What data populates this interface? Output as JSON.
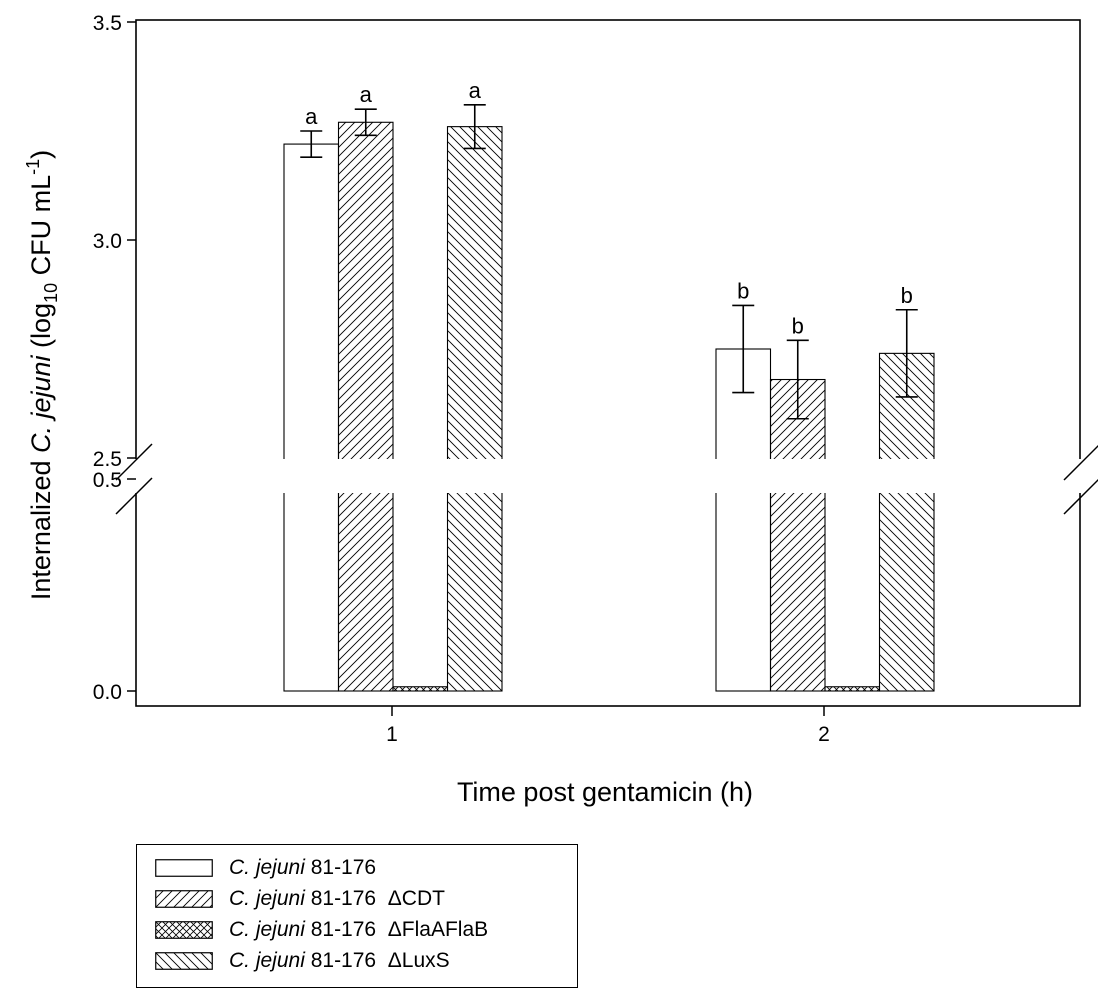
{
  "chart_data": {
    "type": "bar",
    "xlabel": "Time post gentamicin (h)",
    "ylabel": {
      "prefix": "Internalized ",
      "italic": "C. jejuni",
      "middle": " (log",
      "subscript": "10",
      "unit": " CFU mL",
      "superscript": "-1",
      "suffix": ")"
    },
    "categories": [
      "1",
      "2"
    ],
    "axis_break": {
      "lower_max": 0.5,
      "upper_min": 2.5
    },
    "ylim": [
      0.0,
      3.5
    ],
    "yticks": [
      {
        "value": 0.0,
        "label": "0.0"
      },
      {
        "value": 0.5,
        "label": "0.5"
      },
      {
        "value": 2.5,
        "label": "2.5"
      },
      {
        "value": 3.0,
        "label": "3.0"
      },
      {
        "value": 3.5,
        "label": "3.5"
      }
    ],
    "series": [
      {
        "name": "C. jejuni 81-176",
        "pattern": "open",
        "values": [
          3.22,
          2.75
        ],
        "errors": [
          0.03,
          0.1
        ],
        "letters": [
          "a",
          "b"
        ]
      },
      {
        "name": "C. jejuni 81-176  ΔCDT",
        "pattern": "forward-hatch",
        "values": [
          3.27,
          2.68
        ],
        "errors": [
          0.03,
          0.09
        ],
        "letters": [
          "a",
          "b"
        ]
      },
      {
        "name": "C. jejuni 81-176  ΔFlaAFlaB",
        "pattern": "crosshatch",
        "values": [
          0.01,
          0.01
        ],
        "errors": [
          null,
          null
        ],
        "letters": [
          "",
          ""
        ]
      },
      {
        "name": "C. jejuni 81-176  ΔLuxS",
        "pattern": "back-hatch",
        "values": [
          3.26,
          2.74
        ],
        "errors": [
          0.05,
          0.1
        ],
        "letters": [
          "a",
          "b"
        ]
      }
    ]
  },
  "legend": {
    "items": [
      {
        "italic": "C. jejuni",
        "rest": " 81-176",
        "pattern": "open"
      },
      {
        "italic": "C. jejuni",
        "rest": " 81-176  ΔCDT",
        "pattern": "forward-hatch"
      },
      {
        "italic": "C. jejuni",
        "rest": " 81-176  ΔFlaAFlaB",
        "pattern": "crosshatch"
      },
      {
        "italic": "C. jejuni",
        "rest": " 81-176  ΔLuxS",
        "pattern": "back-hatch"
      }
    ]
  }
}
